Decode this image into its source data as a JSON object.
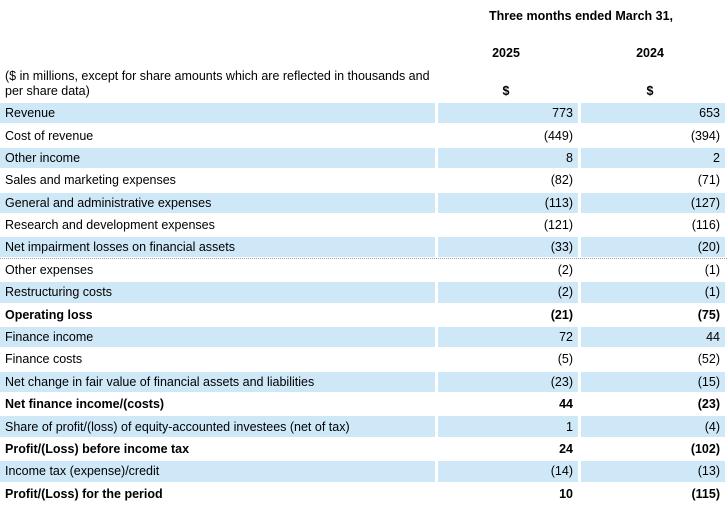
{
  "header": {
    "period": "Three months ended March 31,",
    "years": [
      "2025",
      "2024"
    ],
    "note": "($ in millions, except for share amounts which are reflected in thousands and per share data)",
    "currency": [
      "$",
      "$"
    ]
  },
  "rows": [
    {
      "label": "Revenue",
      "v2025": "773",
      "v2024": "653",
      "shaded": true,
      "bold": false
    },
    {
      "label": "Cost of revenue",
      "v2025": "(449)",
      "v2024": "(394)",
      "shaded": false,
      "bold": false
    },
    {
      "label": "Other income",
      "v2025": "8",
      "v2024": "2",
      "shaded": true,
      "bold": false
    },
    {
      "label": "Sales and marketing expenses",
      "v2025": "(82)",
      "v2024": "(71)",
      "shaded": false,
      "bold": false
    },
    {
      "label": "General and administrative expenses",
      "v2025": "(113)",
      "v2024": "(127)",
      "shaded": true,
      "bold": false
    },
    {
      "label": "Research and development expenses",
      "v2025": "(121)",
      "v2024": "(116)",
      "shaded": false,
      "bold": false
    },
    {
      "label": "Net impairment losses on financial assets",
      "v2025": "(33)",
      "v2024": "(20)",
      "shaded": true,
      "bold": false,
      "dotted": true
    },
    {
      "label": "Other expenses",
      "v2025": "(2)",
      "v2024": "(1)",
      "shaded": false,
      "bold": false
    },
    {
      "label": "Restructuring costs",
      "v2025": "(2)",
      "v2024": "(1)",
      "shaded": true,
      "bold": false
    },
    {
      "label": "Operating loss",
      "v2025": "(21)",
      "v2024": "(75)",
      "shaded": false,
      "bold": true
    },
    {
      "label": "Finance income",
      "v2025": "72",
      "v2024": "44",
      "shaded": true,
      "bold": false
    },
    {
      "label": "Finance costs",
      "v2025": "(5)",
      "v2024": "(52)",
      "shaded": false,
      "bold": false
    },
    {
      "label": "Net change in fair value of financial assets and liabilities",
      "v2025": "(23)",
      "v2024": "(15)",
      "shaded": true,
      "bold": false
    },
    {
      "label": "Net finance income/(costs)",
      "v2025": "44",
      "v2024": "(23)",
      "shaded": false,
      "bold": true
    },
    {
      "label": "Share of profit/(loss) of equity-accounted investees (net of tax)",
      "v2025": "1",
      "v2024": "(4)",
      "shaded": true,
      "bold": false
    },
    {
      "label": "Profit/(Loss) before income tax",
      "v2025": "24",
      "v2024": "(102)",
      "shaded": false,
      "bold": true
    },
    {
      "label": "Income tax (expense)/credit",
      "v2025": "(14)",
      "v2024": "(13)",
      "shaded": true,
      "bold": false
    },
    {
      "label": "Profit/(Loss) for the period",
      "v2025": "10",
      "v2024": "(115)",
      "shaded": false,
      "bold": true
    }
  ]
}
